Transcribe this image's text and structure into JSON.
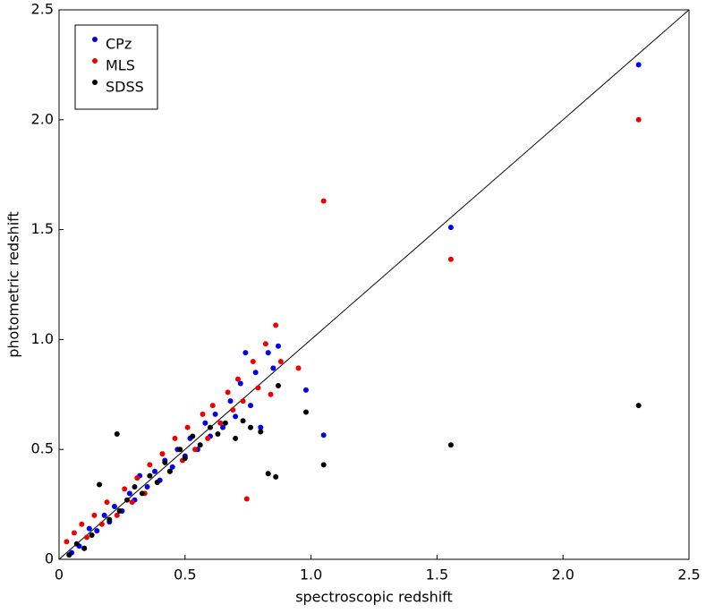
{
  "chart_data": {
    "type": "scatter",
    "x_label": "spectroscopic redshift",
    "y_label": "photometric redshift",
    "xlim": [
      0,
      2.5
    ],
    "ylim": [
      0,
      2.5
    ],
    "xticks": [
      0,
      0.5,
      {
        "value": 1,
        "label": "1.0"
      },
      1.5,
      {
        "value": 2,
        "label": "2.0"
      },
      2.5
    ],
    "yticks": [
      0,
      0.5,
      {
        "value": 1,
        "label": "1.0"
      },
      1.5,
      {
        "value": 2,
        "label": "2.0"
      },
      2.5
    ],
    "legend": "upper left",
    "series": [
      {
        "name": "CPz",
        "color": "#0000ee",
        "x": [
          0.05,
          0.08,
          0.1,
          0.12,
          0.15,
          0.18,
          0.2,
          0.22,
          0.25,
          0.28,
          0.3,
          0.32,
          0.35,
          0.38,
          0.4,
          0.42,
          0.45,
          0.47,
          0.5,
          0.52,
          0.55,
          0.58,
          0.6,
          0.62,
          0.65,
          0.68,
          0.7,
          0.72,
          0.74,
          0.76,
          0.78,
          0.8,
          0.83,
          0.85,
          0.87,
          0.98,
          1.05,
          1.555,
          2.3
        ],
        "values": [
          0.03,
          0.06,
          0.05,
          0.14,
          0.13,
          0.2,
          0.17,
          0.24,
          0.22,
          0.3,
          0.27,
          0.38,
          0.33,
          0.4,
          0.36,
          0.45,
          0.42,
          0.5,
          0.47,
          0.55,
          0.5,
          0.62,
          0.56,
          0.66,
          0.6,
          0.72,
          0.65,
          0.8,
          0.94,
          0.7,
          0.85,
          0.6,
          0.94,
          0.87,
          0.97,
          0.77,
          0.565,
          1.51,
          2.25
        ]
      },
      {
        "name": "MLS",
        "color": "#ee0000",
        "x": [
          0.03,
          0.06,
          0.09,
          0.11,
          0.14,
          0.17,
          0.19,
          0.23,
          0.26,
          0.29,
          0.31,
          0.34,
          0.36,
          0.39,
          0.41,
          0.44,
          0.46,
          0.49,
          0.51,
          0.54,
          0.57,
          0.59,
          0.61,
          0.64,
          0.67,
          0.69,
          0.71,
          0.73,
          0.745,
          0.77,
          0.79,
          0.82,
          0.84,
          0.86,
          0.88,
          0.95,
          1.05,
          1.555,
          2.3
        ],
        "values": [
          0.08,
          0.12,
          0.16,
          0.1,
          0.2,
          0.16,
          0.26,
          0.2,
          0.32,
          0.26,
          0.37,
          0.3,
          0.43,
          0.35,
          0.48,
          0.4,
          0.55,
          0.45,
          0.6,
          0.5,
          0.66,
          0.55,
          0.7,
          0.62,
          0.76,
          0.68,
          0.82,
          0.72,
          0.275,
          0.9,
          0.78,
          0.98,
          0.75,
          1.065,
          0.9,
          0.87,
          1.63,
          1.365,
          2.0
        ]
      },
      {
        "name": "SDSS",
        "color": "#000000",
        "x": [
          0.04,
          0.07,
          0.1,
          0.13,
          0.16,
          0.2,
          0.23,
          0.24,
          0.27,
          0.3,
          0.33,
          0.36,
          0.39,
          0.42,
          0.44,
          0.48,
          0.5,
          0.53,
          0.56,
          0.6,
          0.63,
          0.66,
          0.7,
          0.73,
          0.76,
          0.8,
          0.83,
          0.86,
          0.87,
          0.98,
          1.05,
          1.555,
          2.3
        ],
        "values": [
          0.02,
          0.07,
          0.05,
          0.11,
          0.34,
          0.18,
          0.57,
          0.22,
          0.27,
          0.33,
          0.3,
          0.38,
          0.35,
          0.44,
          0.4,
          0.5,
          0.46,
          0.56,
          0.52,
          0.6,
          0.57,
          0.62,
          0.55,
          0.63,
          0.6,
          0.58,
          0.39,
          0.375,
          0.79,
          0.67,
          0.43,
          0.52,
          0.7
        ]
      }
    ]
  }
}
